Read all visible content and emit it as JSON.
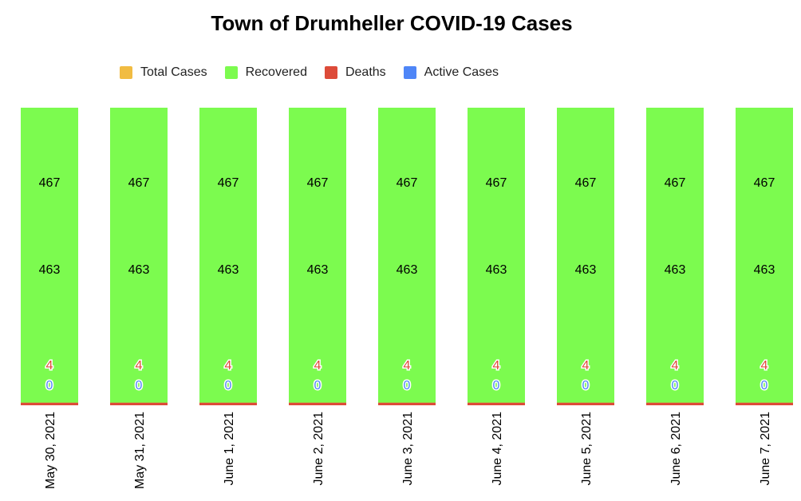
{
  "chart_data": {
    "type": "bar",
    "title": "Town of Drumheller COVID-19 Cases",
    "categories": [
      "May 30, 2021",
      "May 31, 2021",
      "June 1, 2021",
      "June 2, 2021",
      "June 3, 2021",
      "June 4, 2021",
      "June 5, 2021",
      "June 6, 2021",
      "June 7, 2021"
    ],
    "series": [
      {
        "name": "Total Cases",
        "color": "#f1bc42",
        "values": [
          467,
          467,
          467,
          467,
          467,
          467,
          467,
          467,
          467
        ]
      },
      {
        "name": "Recovered",
        "color": "#7cfb4f",
        "values": [
          463,
          463,
          463,
          463,
          463,
          463,
          463,
          463,
          463
        ]
      },
      {
        "name": "Deaths",
        "color": "#dd4b39",
        "values": [
          4,
          4,
          4,
          4,
          4,
          4,
          4,
          4,
          4
        ]
      },
      {
        "name": "Active Cases",
        "color": "#4f86f7",
        "values": [
          0,
          0,
          0,
          0,
          0,
          0,
          0,
          0,
          0
        ]
      }
    ],
    "legend": "top",
    "grid": false
  }
}
